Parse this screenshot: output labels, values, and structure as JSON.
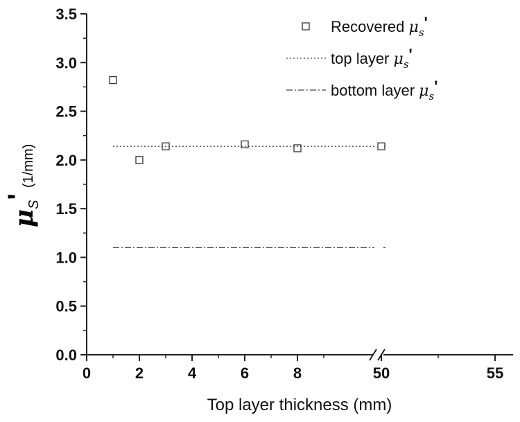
{
  "chart_data": {
    "type": "scatter",
    "xlabel": "Top layer thickness (mm)",
    "ylabel": {
      "symbol": "μ",
      "subscript": "S",
      "prime": "'",
      "unit": "(1/mm)"
    },
    "ylim": [
      0.0,
      3.5
    ],
    "x_ticks": [
      "0",
      "2",
      "4",
      "6",
      "8",
      "50",
      "55"
    ],
    "x_axis_break": "//",
    "y_ticks": [
      "0.0",
      "0.5",
      "1.0",
      "1.5",
      "2.0",
      "2.5",
      "3.0",
      "3.5"
    ],
    "series": [
      {
        "name": "Recovered μs'",
        "legend": {
          "text": "Recovered ",
          "mu": "μ",
          "sub": "s",
          "prime": "'"
        },
        "kind": "markers",
        "marker": "open-square",
        "points": [
          {
            "x": 1,
            "y": 2.82
          },
          {
            "x": 2,
            "y": 2.0
          },
          {
            "x": 3,
            "y": 2.14
          },
          {
            "x": 6,
            "y": 2.16
          },
          {
            "x": 8,
            "y": 2.12
          },
          {
            "x": 50,
            "y": 2.14
          }
        ]
      },
      {
        "name": "top layer μs'",
        "legend": {
          "text": "top layer ",
          "mu": "μ",
          "sub": "s",
          "prime": "'"
        },
        "kind": "line",
        "style": "dotted",
        "value": 2.14
      },
      {
        "name": "bottom layer μs'",
        "legend": {
          "text": "bottom layer ",
          "mu": "μ",
          "sub": "s",
          "prime": "'"
        },
        "kind": "line",
        "style": "dash-dot",
        "value": 1.1
      }
    ],
    "line_x_range": [
      1,
      50
    ],
    "grid": false,
    "legend_position": "top-right"
  }
}
